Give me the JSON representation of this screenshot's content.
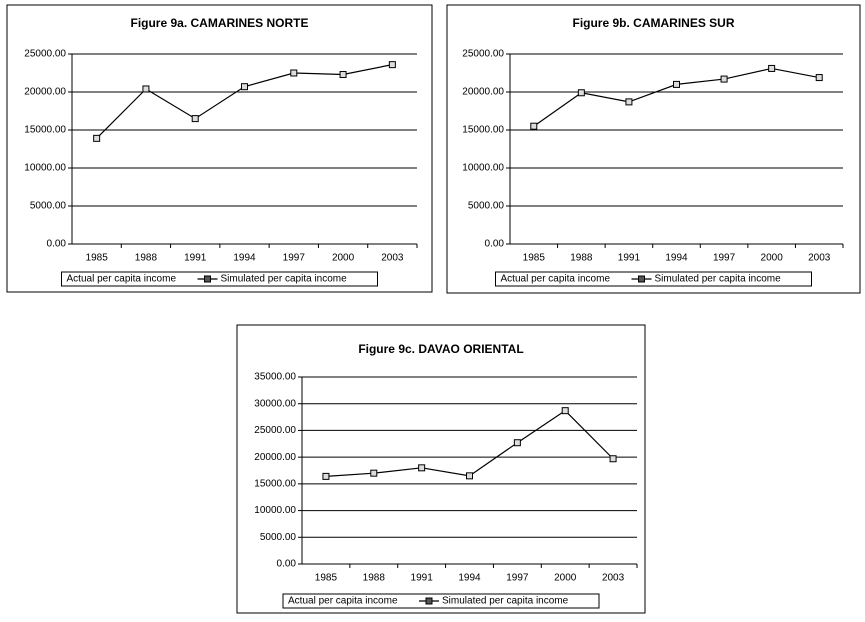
{
  "chart_data": [
    {
      "type": "line",
      "title": "Figure 9a. CAMARINES NORTE",
      "categories": [
        "1985",
        "1988",
        "1991",
        "1994",
        "1997",
        "2000",
        "2003"
      ],
      "series": [
        {
          "name": "Actual per capita income",
          "color": "#000000",
          "values": [
            13900,
            20400,
            16500,
            20700,
            22500,
            22300,
            23600
          ]
        },
        {
          "name": "Simulated per capita income",
          "color": "#000000",
          "values": [
            13900,
            20400,
            16500,
            20700,
            22500,
            22300,
            23600
          ]
        }
      ],
      "ylim": [
        0,
        25000
      ],
      "yticks": [
        {
          "value": 0,
          "label": "0.00"
        },
        {
          "value": 5000,
          "label": "5000.00"
        },
        {
          "value": 10000,
          "label": "10000.00"
        },
        {
          "value": 15000,
          "label": "15000.00"
        },
        {
          "value": 20000,
          "label": "20000.00"
        },
        {
          "value": 25000,
          "label": "25000.00"
        }
      ],
      "grid": true
    },
    {
      "type": "line",
      "title": "Figure 9b. CAMARINES SUR",
      "categories": [
        "1985",
        "1988",
        "1991",
        "1994",
        "1997",
        "2000",
        "2003"
      ],
      "series": [
        {
          "name": "Actual per capita income",
          "color": "#000000",
          "values": [
            15500,
            19900,
            18700,
            21000,
            21700,
            23100,
            21900
          ]
        },
        {
          "name": "Simulated per capita income",
          "color": "#000000",
          "values": [
            15500,
            19900,
            18700,
            21000,
            21700,
            23100,
            21900
          ]
        }
      ],
      "ylim": [
        0,
        25000
      ],
      "yticks": [
        {
          "value": 0,
          "label": "0.00"
        },
        {
          "value": 5000,
          "label": "5000.00"
        },
        {
          "value": 10000,
          "label": "10000.00"
        },
        {
          "value": 15000,
          "label": "15000.00"
        },
        {
          "value": 20000,
          "label": "20000.00"
        },
        {
          "value": 25000,
          "label": "25000.00"
        }
      ],
      "grid": true
    },
    {
      "type": "line",
      "title": "Figure 9c. DAVAO ORIENTAL",
      "categories": [
        "1985",
        "1988",
        "1991",
        "1994",
        "1997",
        "2000",
        "2003"
      ],
      "series": [
        {
          "name": "Actual per capita income",
          "color": "#000000",
          "values": [
            16400,
            17000,
            18000,
            16500,
            22700,
            28700,
            19700
          ]
        },
        {
          "name": "Simulated per capita income",
          "color": "#000000",
          "values": [
            16400,
            17000,
            18000,
            16500,
            22700,
            28700,
            19700
          ]
        }
      ],
      "ylim": [
        0,
        35000
      ],
      "yticks": [
        {
          "value": 0,
          "label": "0.00"
        },
        {
          "value": 5000,
          "label": "5000.00"
        },
        {
          "value": 10000,
          "label": "10000.00"
        },
        {
          "value": 15000,
          "label": "15000.00"
        },
        {
          "value": 20000,
          "label": "20000.00"
        },
        {
          "value": 25000,
          "label": "25000.00"
        },
        {
          "value": 30000,
          "label": "30000.00"
        },
        {
          "value": 35000,
          "label": "35000.00"
        }
      ],
      "grid": true
    }
  ]
}
